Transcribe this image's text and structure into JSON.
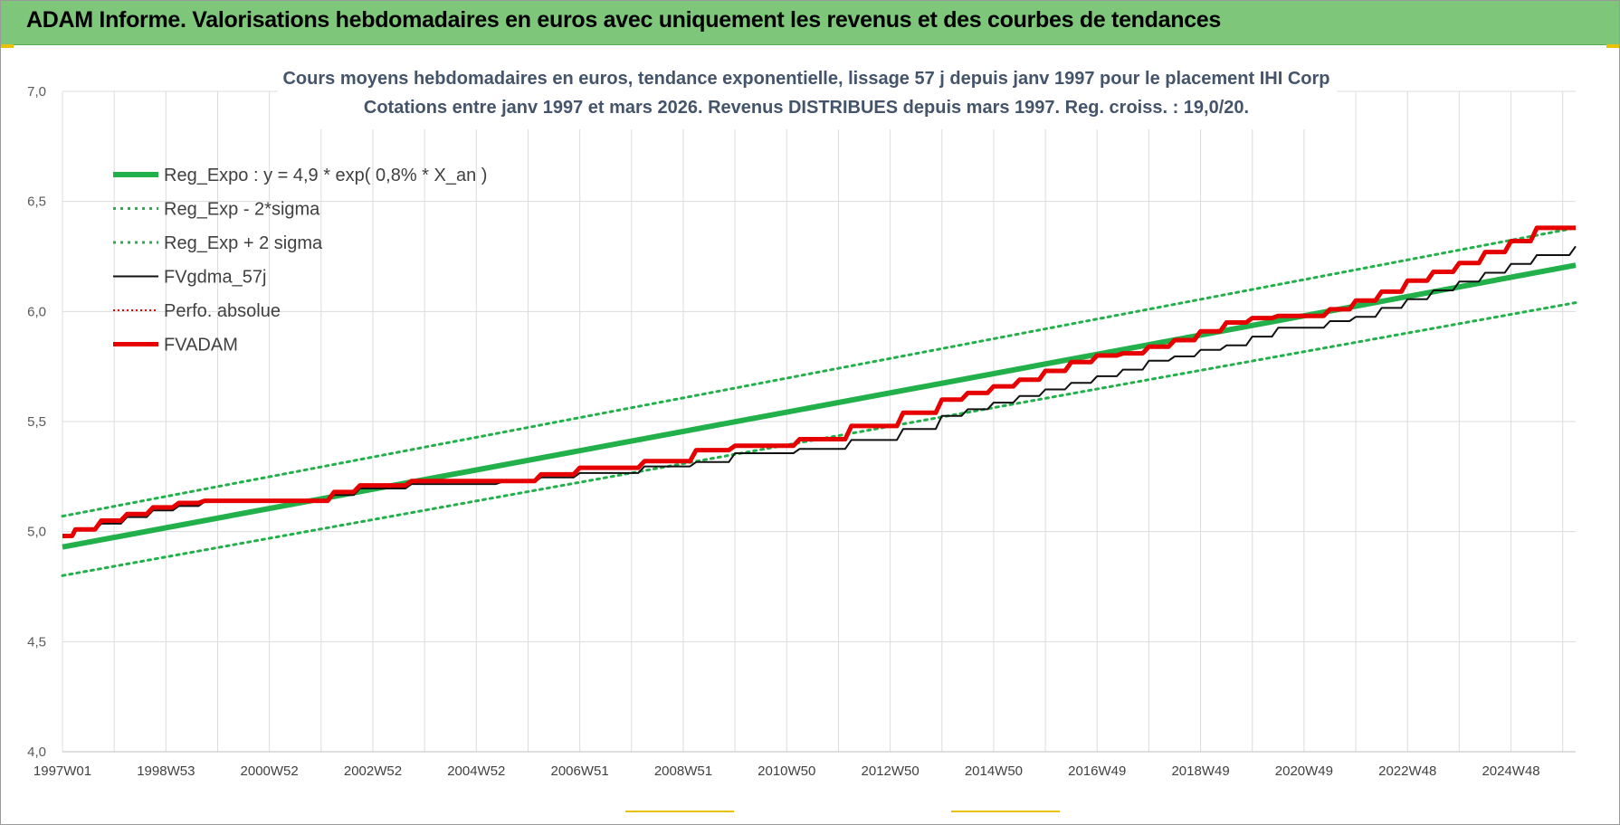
{
  "header": {
    "title": "ADAM Informe. Valorisations hebdomadaires en euros avec uniquement les revenus et des courbes de tendances"
  },
  "colors": {
    "header_bg": "#7dc67a",
    "reg_green": "#22b04b",
    "adam_red": "#e60000",
    "gdma_black": "#111111",
    "title_text": "#44546a"
  },
  "chart_data": {
    "type": "line",
    "title": "Cours moyens hebdomadaires en euros, tendance exponentielle, lissage 57 j depuis janv 1997 pour le placement IHI Corp",
    "subtitle": "Cotations entre janv 1997 et mars 2026. Revenus DISTRIBUES depuis mars 1997. Reg. croiss. : 19,0/20.",
    "xlabel": "",
    "ylabel": "",
    "x_range": [
      1997.0,
      2026.25
    ],
    "ylim": [
      4.0,
      7.0
    ],
    "y_ticks": [
      "4,0",
      "4,5",
      "5,0",
      "5,5",
      "6,0",
      "6,5",
      "7,0"
    ],
    "x_ticks": [
      {
        "label": "1997W01",
        "x": 1997.0
      },
      {
        "label": "1998W53",
        "x": 1999.0
      },
      {
        "label": "2000W52",
        "x": 2001.0
      },
      {
        "label": "2002W52",
        "x": 2003.0
      },
      {
        "label": "2004W52",
        "x": 2005.0
      },
      {
        "label": "2006W51",
        "x": 2007.0
      },
      {
        "label": "2008W51",
        "x": 2009.0
      },
      {
        "label": "2010W50",
        "x": 2011.0
      },
      {
        "label": "2012W50",
        "x": 2013.0
      },
      {
        "label": "2014W50",
        "x": 2015.0
      },
      {
        "label": "2016W49",
        "x": 2017.0
      },
      {
        "label": "2018W49",
        "x": 2019.0
      },
      {
        "label": "2020W49",
        "x": 2021.0
      },
      {
        "label": "2022W48",
        "x": 2023.0
      },
      {
        "label": "2024W48",
        "x": 2025.0
      }
    ],
    "grid": true,
    "legend_position": "top-left",
    "series": [
      {
        "name": "Reg_Expo : y = 4,9 * exp( 0,8% *  X_an )",
        "style": "solid-thick",
        "color": "#22b04b",
        "x": [
          1997.0,
          2026.25
        ],
        "y": [
          4.93,
          6.21
        ]
      },
      {
        "name": "Reg_Exp - 2*sigma",
        "style": "dotted",
        "color": "#22b04b",
        "x": [
          1997.0,
          2026.25
        ],
        "y": [
          4.8,
          6.04
        ]
      },
      {
        "name": "Reg_Exp + 2 sigma",
        "style": "dotted",
        "color": "#22b04b",
        "x": [
          1997.0,
          2026.25
        ],
        "y": [
          5.07,
          6.38
        ]
      },
      {
        "name": "FVgdma_57j",
        "style": "solid-thin",
        "color": "#111111",
        "x": [
          1997.0,
          1997.25,
          1997.75,
          1998.25,
          1998.75,
          1999.25,
          1999.75,
          2002.25,
          2002.75,
          2003.75,
          2005.5,
          2006.25,
          2007.0,
          2008.25,
          2009.25,
          2010.0,
          2011.25,
          2012.25,
          2013.25,
          2014.0,
          2014.5,
          2015.0,
          2015.5,
          2016.0,
          2016.5,
          2017.0,
          2017.5,
          2018.0,
          2018.5,
          2019.0,
          2019.5,
          2020.0,
          2020.5,
          2021.5,
          2022.0,
          2022.5,
          2023.0,
          2023.5,
          2024.0,
          2024.5,
          2025.0,
          2025.5,
          2026.25
        ],
        "y": [
          4.98,
          5.01,
          5.04,
          5.07,
          5.1,
          5.12,
          5.14,
          5.17,
          5.2,
          5.22,
          5.23,
          5.25,
          5.27,
          5.3,
          5.32,
          5.36,
          5.38,
          5.42,
          5.47,
          5.53,
          5.56,
          5.59,
          5.62,
          5.65,
          5.68,
          5.71,
          5.74,
          5.78,
          5.8,
          5.83,
          5.85,
          5.89,
          5.93,
          5.96,
          5.98,
          6.02,
          6.06,
          6.1,
          6.14,
          6.18,
          6.22,
          6.26,
          6.3
        ]
      },
      {
        "name": "Perfo. absolue",
        "style": "dotted-thin",
        "color": "#e60000",
        "x": [],
        "y": []
      },
      {
        "name": "FVADAM",
        "style": "step-thick",
        "color": "#e60000",
        "x": [
          1997.0,
          1997.25,
          1997.75,
          1998.25,
          1998.75,
          1999.25,
          1999.75,
          2002.25,
          2002.75,
          2003.75,
          2005.5,
          2006.25,
          2007.0,
          2008.25,
          2009.25,
          2010.0,
          2011.25,
          2012.25,
          2013.25,
          2014.0,
          2014.5,
          2015.0,
          2015.5,
          2016.0,
          2016.5,
          2017.0,
          2017.5,
          2018.0,
          2018.5,
          2019.0,
          2019.5,
          2020.0,
          2020.5,
          2021.5,
          2022.0,
          2022.5,
          2023.0,
          2023.5,
          2024.0,
          2024.5,
          2025.0,
          2025.5,
          2026.25
        ],
        "y": [
          4.98,
          5.01,
          5.05,
          5.08,
          5.11,
          5.13,
          5.14,
          5.18,
          5.21,
          5.23,
          5.23,
          5.26,
          5.29,
          5.32,
          5.37,
          5.39,
          5.42,
          5.48,
          5.54,
          5.6,
          5.63,
          5.66,
          5.69,
          5.73,
          5.77,
          5.8,
          5.81,
          5.84,
          5.87,
          5.91,
          5.95,
          5.97,
          5.98,
          6.01,
          6.05,
          6.09,
          6.14,
          6.18,
          6.22,
          6.27,
          6.32,
          6.38,
          6.38
        ]
      }
    ]
  }
}
